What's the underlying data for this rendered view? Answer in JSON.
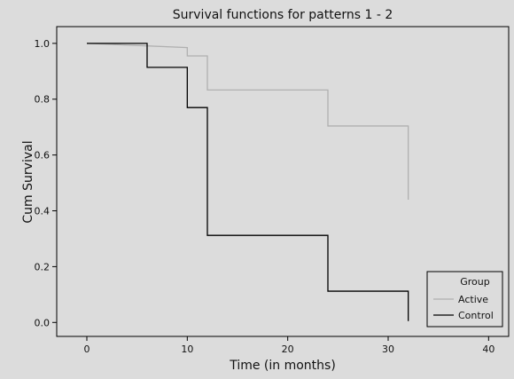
{
  "chart_data": {
    "type": "line",
    "title": "Survival functions for patterns 1 - 2",
    "xlabel": "Time (in months)",
    "ylabel": "Cum Survival",
    "xlim": [
      -3,
      42
    ],
    "ylim": [
      -0.05,
      1.06
    ],
    "x_ticks": [
      0,
      10,
      20,
      30,
      40
    ],
    "y_ticks": [
      0.0,
      0.2,
      0.4,
      0.6,
      0.8,
      1.0
    ],
    "x_tick_labels": [
      "0",
      "10",
      "20",
      "30",
      "40"
    ],
    "y_tick_labels": [
      "0.0",
      "0.2",
      "0.4",
      "0.6",
      "0.8",
      "1.0"
    ],
    "grid": false,
    "legend": {
      "title": "Group",
      "position": "bottom-right"
    },
    "series": [
      {
        "name": "Active",
        "color": "#b0b0b0",
        "step": true,
        "points": [
          [
            0,
            1.0
          ],
          [
            10,
            0.985
          ],
          [
            10,
            0.955
          ],
          [
            12,
            0.955
          ],
          [
            12,
            0.833
          ],
          [
            24,
            0.833
          ],
          [
            24,
            0.704
          ],
          [
            32,
            0.704
          ],
          [
            32,
            0.44
          ]
        ]
      },
      {
        "name": "Control",
        "color": "#000000",
        "step": true,
        "points": [
          [
            0,
            1.0
          ],
          [
            6,
            1.0
          ],
          [
            6,
            0.914
          ],
          [
            10,
            0.914
          ],
          [
            10,
            0.77
          ],
          [
            12,
            0.77
          ],
          [
            12,
            0.312
          ],
          [
            24,
            0.312
          ],
          [
            24,
            0.112
          ],
          [
            32,
            0.112
          ],
          [
            32,
            0.005
          ]
        ]
      }
    ]
  }
}
